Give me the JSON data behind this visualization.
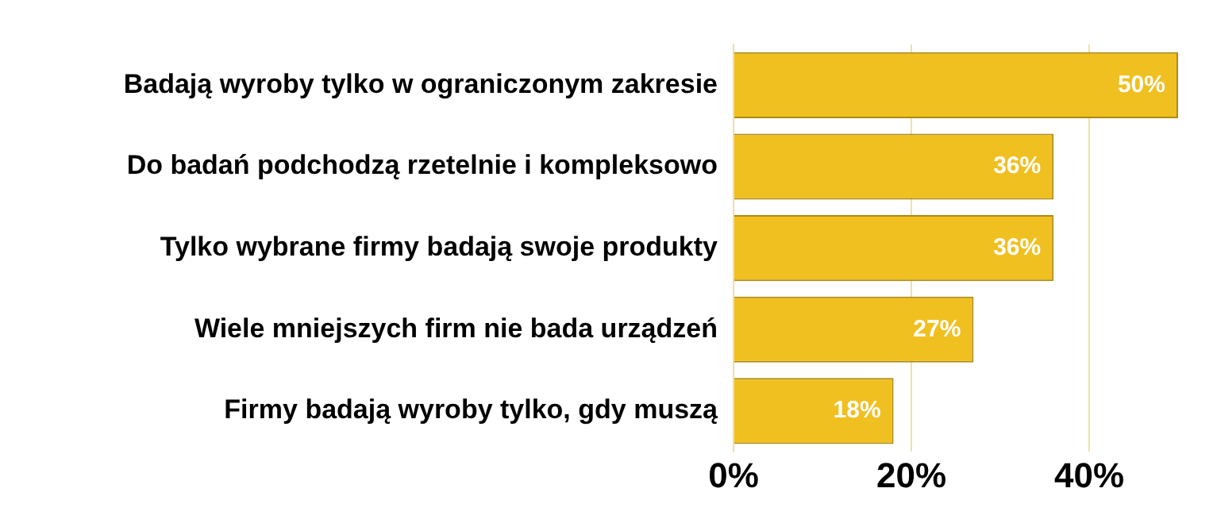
{
  "chart_data": {
    "type": "bar",
    "orientation": "horizontal",
    "categories": [
      "Badają wyroby tylko w ograniczonym zakresie",
      "Do badań podchodzą rzetelnie i kompleksowo",
      "Tylko wybrane firmy badają swoje produkty",
      "Wiele mniejszych firm nie bada urządzeń",
      "Firmy badają wyroby tylko, gdy muszą"
    ],
    "values": [
      50,
      36,
      36,
      27,
      18
    ],
    "value_labels": [
      "50%",
      "36%",
      "36%",
      "27%",
      "18%"
    ],
    "color": "#f0c020",
    "xlim": [
      0,
      50
    ],
    "xticks": [
      {
        "value": 0,
        "label": "0%"
      },
      {
        "value": 20,
        "label": "20%"
      },
      {
        "value": 40,
        "label": "40%"
      }
    ],
    "grid": "x"
  }
}
